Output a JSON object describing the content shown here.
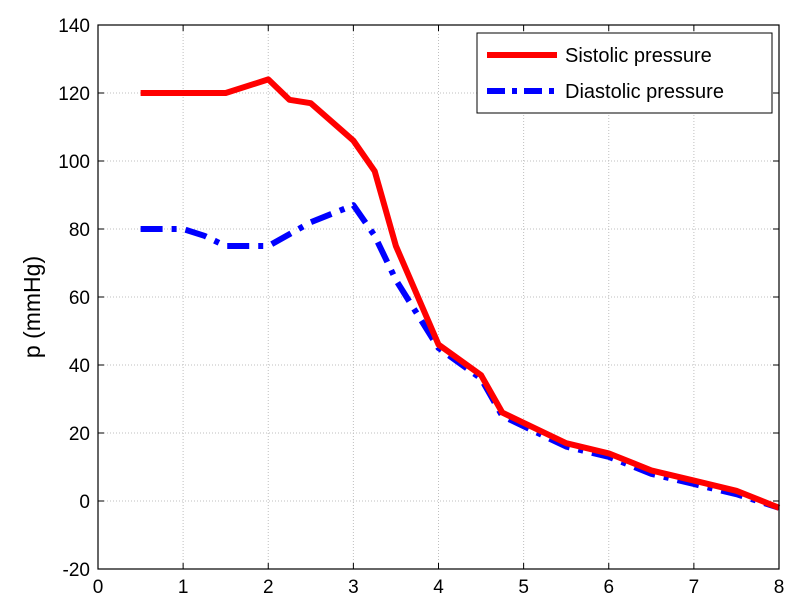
{
  "chart_data": {
    "type": "line",
    "title": "",
    "xlabel": "",
    "ylabel": "p (mmHg)",
    "xlim": [
      0,
      8
    ],
    "ylim": [
      -20,
      140
    ],
    "xticks": [
      0,
      1,
      2,
      3,
      4,
      5,
      6,
      7,
      8
    ],
    "yticks": [
      -20,
      0,
      20,
      40,
      60,
      80,
      100,
      120,
      140
    ],
    "grid": true,
    "legend_position": "top-right",
    "series": [
      {
        "name": "Sistolic pressure",
        "color": "#ff0000",
        "style": "solid",
        "x": [
          0.5,
          1.0,
          1.5,
          2.0,
          2.25,
          2.5,
          3.0,
          3.25,
          3.5,
          4.0,
          4.5,
          4.75,
          5.0,
          5.5,
          6.0,
          6.5,
          7.0,
          7.5,
          8.0
        ],
        "y": [
          120,
          120,
          120,
          124,
          118,
          117,
          106,
          97,
          75,
          46,
          37,
          26,
          23,
          17,
          14,
          9,
          6,
          3,
          -2
        ]
      },
      {
        "name": "Diastolic pressure",
        "color": "#0000ff",
        "style": "dashdot",
        "x": [
          0.5,
          1.0,
          1.25,
          1.5,
          1.75,
          2.0,
          2.5,
          3.0,
          3.25,
          3.5,
          4.0,
          4.5,
          4.75,
          5.0,
          5.5,
          6.0,
          6.5,
          7.0,
          7.5,
          8.0
        ],
        "y": [
          80,
          80,
          78,
          75,
          75,
          75,
          82,
          87,
          78,
          65,
          45,
          36,
          25,
          22,
          16,
          13,
          8,
          5,
          2,
          -2
        ]
      }
    ]
  }
}
